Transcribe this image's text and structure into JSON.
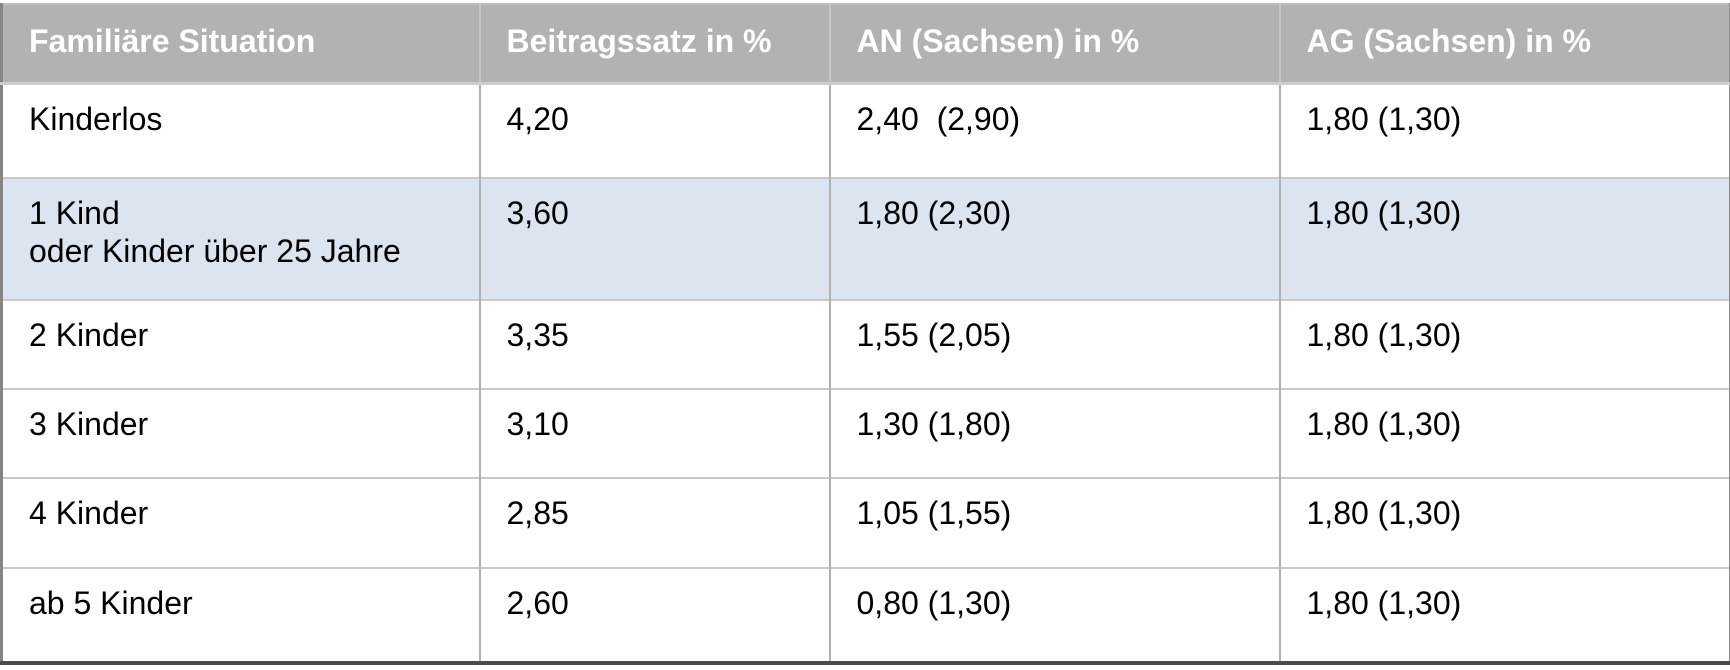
{
  "table": {
    "headers": [
      "Familiäre Situation",
      "Beitragssatz in %",
      "AN (Sachsen) in %",
      "AG (Sachsen) in %"
    ],
    "rows": [
      {
        "situation": "Kinderlos",
        "beitragssatz": "4,20",
        "an": "2,40  (2,90)",
        "ag": "1,80 (1,30)",
        "highlighted": false
      },
      {
        "situation": "1 Kind\noder Kinder über 25 Jahre",
        "beitragssatz": "3,60",
        "an": "1,80 (2,30)",
        "ag": "1,80 (1,30)",
        "highlighted": true
      },
      {
        "situation": "2 Kinder",
        "beitragssatz": "3,35",
        "an": "1,55 (2,05)",
        "ag": "1,80 (1,30)",
        "highlighted": false
      },
      {
        "situation": "3 Kinder",
        "beitragssatz": "3,10",
        "an": "1,30 (1,80)",
        "ag": "1,80 (1,30)",
        "highlighted": false
      },
      {
        "situation": "4 Kinder",
        "beitragssatz": "2,85",
        "an": "1,05 (1,55)",
        "ag": "1,80 (1,30)",
        "highlighted": false
      },
      {
        "situation": "ab 5 Kinder",
        "beitragssatz": "2,60",
        "an": "0,80 (1,30)",
        "ag": "1,80 (1,30)",
        "highlighted": false
      }
    ],
    "colors": {
      "header_bg": "#b2b2b2",
      "header_text": "#ffffff",
      "highlight_row_bg": "#dce4ef",
      "row_bg": "#ffffff",
      "body_text": "#000000",
      "inner_border": "#c8c8c8",
      "outer_border": "#858585"
    }
  },
  "chart_data": {
    "type": "table",
    "columns": [
      "Familiäre Situation",
      "Beitragssatz in %",
      "AN (Sachsen) in %",
      "AG (Sachsen) in %"
    ],
    "rows": [
      [
        "Kinderlos",
        "4,20",
        "2,40 (2,90)",
        "1,80 (1,30)"
      ],
      [
        "1 Kind oder Kinder über 25 Jahre",
        "3,60",
        "1,80 (2,30)",
        "1,80 (1,30)"
      ],
      [
        "2 Kinder",
        "3,35",
        "1,55 (2,05)",
        "1,80 (1,30)"
      ],
      [
        "3 Kinder",
        "3,10",
        "1,30 (1,80)",
        "1,80 (1,30)"
      ],
      [
        "4 Kinder",
        "2,85",
        "1,05 (1,55)",
        "1,80 (1,30)"
      ],
      [
        "ab 5 Kinder",
        "2,60",
        "0,80 (1,30)",
        "1,80 (1,30)"
      ]
    ],
    "highlighted_row_index": 1,
    "legend_position": "none",
    "grid": true
  }
}
